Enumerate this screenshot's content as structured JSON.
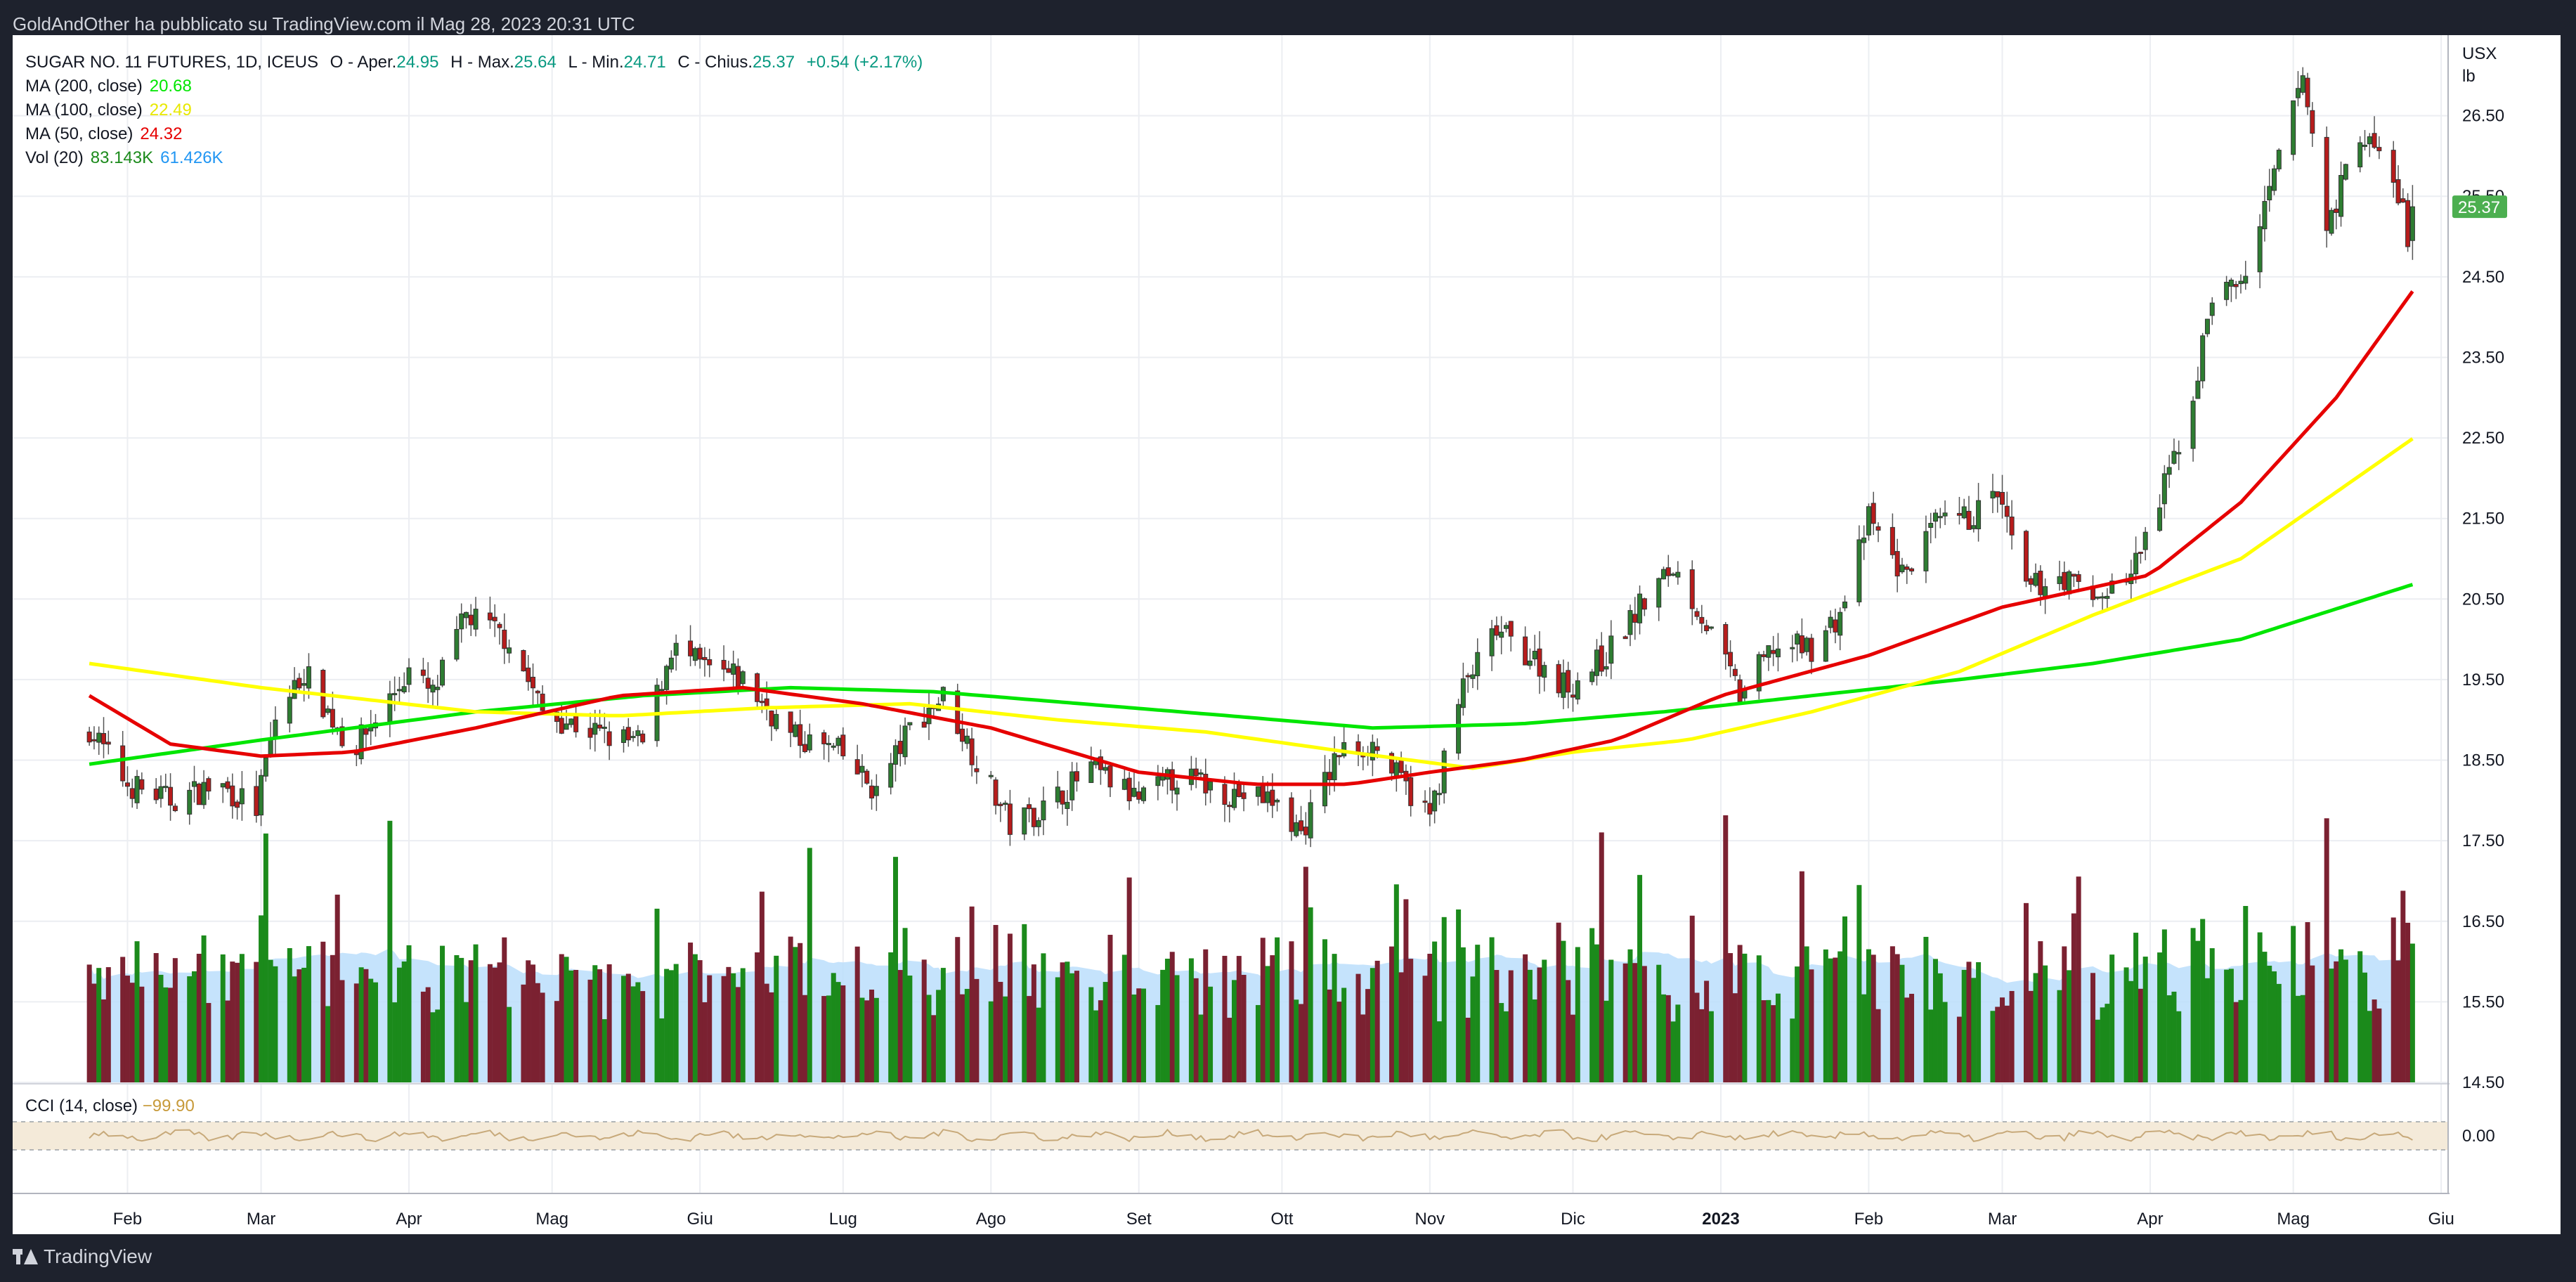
{
  "header": {
    "publish_line": "GoldAndOther ha pubblicato su TradingView.com il Mag 28, 2023 20:31 UTC"
  },
  "legend": {
    "symbol": "SUGAR NO. 11 FUTURES, 1D, ICEUS",
    "o_label": "O - Aper.",
    "o_value": "24.95",
    "h_label": "H - Max.",
    "h_value": "25.64",
    "l_label": "L - Min.",
    "l_value": "24.71",
    "c_label": "C - Chius.",
    "c_value": "25.37",
    "change": "+0.54 (+2.17%)",
    "ma200_label": "MA (200, close)",
    "ma200_value": "20.68",
    "ma100_label": "MA (100, close)",
    "ma100_value": "22.49",
    "ma50_label": "MA (50, close)",
    "ma50_value": "24.32",
    "vol_label": "Vol (20)",
    "vol_value": "83.143K",
    "vol_ma_value": "61.426K",
    "cci_label": "CCI (14, close)",
    "cci_value": "−99.90"
  },
  "price_axis": {
    "unit_line1": "USX",
    "unit_line2": "lb",
    "last_price_badge": "25.37",
    "cci_zero_label": "0.00"
  },
  "footer": {
    "brand": "TradingView"
  },
  "colors": {
    "ma200": "#00e600",
    "ma100": "#ffff00",
    "ma50": "#e60000",
    "up_candle": "#2e7d32",
    "down_candle": "#b71c1c",
    "vol_up": "#1b8a1b",
    "vol_down": "#7b2131",
    "vol_ma_fill": "#bbdefb",
    "cci_line": "#c7a97a",
    "cci_band": "#f4ead9",
    "badge": "#4caf50"
  },
  "chart_data": {
    "type": "candlestick",
    "title": "SUGAR NO. 11 FUTURES, 1D, ICEUS",
    "ylabel": "USX / lb",
    "ylim": [
      14.5,
      27.5
    ],
    "y_ticks": [
      "14.50",
      "15.50",
      "16.50",
      "17.50",
      "18.50",
      "19.50",
      "20.50",
      "21.50",
      "22.50",
      "23.50",
      "24.50",
      "25.50",
      "26.50"
    ],
    "x_ticks": [
      "Feb",
      "Mar",
      "Apr",
      "Mag",
      "Giu",
      "Lug",
      "Ago",
      "Set",
      "Ott",
      "Nov",
      "Dic",
      "2023",
      "Feb",
      "Mar",
      "Apr",
      "Mag",
      "Giu"
    ],
    "close_anchors": [
      [
        "2022-01-24",
        18.9
      ],
      [
        "2022-02-01",
        18.2
      ],
      [
        "2022-02-10",
        18.0
      ],
      [
        "2022-02-20",
        18.2
      ],
      [
        "2022-02-28",
        17.9
      ],
      [
        "2022-03-04",
        19.0
      ],
      [
        "2022-03-10",
        19.6
      ],
      [
        "2022-03-20",
        18.6
      ],
      [
        "2022-04-01",
        19.6
      ],
      [
        "2022-04-06",
        19.3
      ],
      [
        "2022-04-13",
        20.3
      ],
      [
        "2022-04-22",
        20.0
      ],
      [
        "2022-04-29",
        19.1
      ],
      [
        "2022-05-12",
        18.8
      ],
      [
        "2022-05-20",
        18.7
      ],
      [
        "2022-05-26",
        19.9
      ],
      [
        "2022-06-03",
        19.6
      ],
      [
        "2022-06-10",
        19.5
      ],
      [
        "2022-06-20",
        18.8
      ],
      [
        "2022-06-30",
        18.6
      ],
      [
        "2022-07-08",
        18.1
      ],
      [
        "2022-07-15",
        18.9
      ],
      [
        "2022-07-22",
        19.3
      ],
      [
        "2022-07-29",
        18.5
      ],
      [
        "2022-08-05",
        17.7
      ],
      [
        "2022-08-12",
        17.9
      ],
      [
        "2022-08-22",
        18.4
      ],
      [
        "2022-09-01",
        18.0
      ],
      [
        "2022-09-09",
        18.3
      ],
      [
        "2022-09-20",
        18.1
      ],
      [
        "2022-09-29",
        18.0
      ],
      [
        "2022-10-05",
        17.6
      ],
      [
        "2022-10-13",
        18.6
      ],
      [
        "2022-10-20",
        18.7
      ],
      [
        "2022-10-25",
        18.3
      ],
      [
        "2022-11-01",
        17.8
      ],
      [
        "2022-11-08",
        19.4
      ],
      [
        "2022-11-15",
        20.1
      ],
      [
        "2022-11-22",
        19.8
      ],
      [
        "2022-11-30",
        19.4
      ],
      [
        "2022-12-08",
        19.8
      ],
      [
        "2022-12-15",
        20.4
      ],
      [
        "2022-12-22",
        20.9
      ],
      [
        "2022-12-28",
        20.3
      ],
      [
        "2023-01-05",
        19.3
      ],
      [
        "2023-01-12",
        19.9
      ],
      [
        "2023-01-20",
        19.9
      ],
      [
        "2023-01-26",
        20.3
      ],
      [
        "2023-02-01",
        21.5
      ],
      [
        "2023-02-08",
        20.8
      ],
      [
        "2023-02-15",
        21.4
      ],
      [
        "2023-02-22",
        21.5
      ],
      [
        "2023-02-28",
        21.8
      ],
      [
        "2023-03-06",
        20.6
      ],
      [
        "2023-03-13",
        20.8
      ],
      [
        "2023-03-20",
        20.5
      ],
      [
        "2023-03-28",
        20.8
      ],
      [
        "2023-04-03",
        21.7
      ],
      [
        "2023-04-10",
        23.0
      ],
      [
        "2023-04-14",
        24.3
      ],
      [
        "2023-04-20",
        24.4
      ],
      [
        "2023-04-25",
        25.3
      ],
      [
        "2023-05-01",
        26.6
      ],
      [
        "2023-05-03",
        27.0
      ],
      [
        "2023-05-08",
        25.1
      ],
      [
        "2023-05-15",
        26.3
      ],
      [
        "2023-05-19",
        26.0
      ],
      [
        "2023-05-24",
        25.4
      ],
      [
        "2023-05-25",
        24.83
      ],
      [
        "2023-05-26",
        25.37
      ]
    ],
    "ma_anchors": {
      "MA (50, close)": [
        [
          "2022-01-24",
          19.3
        ],
        [
          "2022-02-10",
          18.7
        ],
        [
          "2022-03-01",
          18.55
        ],
        [
          "2022-03-20",
          18.6
        ],
        [
          "2022-04-15",
          18.9
        ],
        [
          "2022-05-15",
          19.3
        ],
        [
          "2022-06-10",
          19.4
        ],
        [
          "2022-07-05",
          19.2
        ],
        [
          "2022-08-01",
          18.9
        ],
        [
          "2022-09-01",
          18.35
        ],
        [
          "2022-09-25",
          18.2
        ],
        [
          "2022-10-15",
          18.2
        ],
        [
          "2022-11-01",
          18.35
        ],
        [
          "2022-11-20",
          18.5
        ],
        [
          "2022-12-10",
          18.75
        ],
        [
          "2023-01-01",
          19.3
        ],
        [
          "2023-02-01",
          19.8
        ],
        [
          "2023-03-01",
          20.4
        ],
        [
          "2023-04-01",
          20.8
        ],
        [
          "2023-04-20",
          21.7
        ],
        [
          "2023-05-10",
          23.0
        ],
        [
          "2023-05-26",
          24.32
        ]
      ],
      "MA (100, close)": [
        [
          "2022-01-24",
          19.7
        ],
        [
          "2022-03-01",
          19.4
        ],
        [
          "2022-04-15",
          19.1
        ],
        [
          "2022-05-15",
          19.05
        ],
        [
          "2022-06-15",
          19.15
        ],
        [
          "2022-07-15",
          19.2
        ],
        [
          "2022-08-15",
          19.0
        ],
        [
          "2022-09-15",
          18.85
        ],
        [
          "2022-10-15",
          18.6
        ],
        [
          "2022-11-10",
          18.4
        ],
        [
          "2022-12-01",
          18.6
        ],
        [
          "2022-12-25",
          18.75
        ],
        [
          "2023-01-20",
          19.1
        ],
        [
          "2023-02-20",
          19.6
        ],
        [
          "2023-03-20",
          20.3
        ],
        [
          "2023-04-20",
          21.0
        ],
        [
          "2023-05-26",
          22.49
        ]
      ],
      "MA (200, close)": [
        [
          "2022-01-24",
          18.45
        ],
        [
          "2022-03-01",
          18.75
        ],
        [
          "2022-04-15",
          19.1
        ],
        [
          "2022-05-20",
          19.3
        ],
        [
          "2022-06-20",
          19.4
        ],
        [
          "2022-07-20",
          19.35
        ],
        [
          "2022-08-20",
          19.2
        ],
        [
          "2022-09-20",
          19.05
        ],
        [
          "2022-10-20",
          18.9
        ],
        [
          "2022-11-20",
          18.95
        ],
        [
          "2022-12-20",
          19.1
        ],
        [
          "2023-01-20",
          19.3
        ],
        [
          "2023-02-20",
          19.5
        ],
        [
          "2023-03-20",
          19.7
        ],
        [
          "2023-04-20",
          20.0
        ],
        [
          "2023-05-26",
          20.68
        ]
      ]
    },
    "last_candle": {
      "open": 24.95,
      "high": 25.64,
      "low": 24.71,
      "close": 25.37
    },
    "volume_last": 83143,
    "volume_ma_last": 61426,
    "cci_last": -99.9,
    "grid": true
  }
}
